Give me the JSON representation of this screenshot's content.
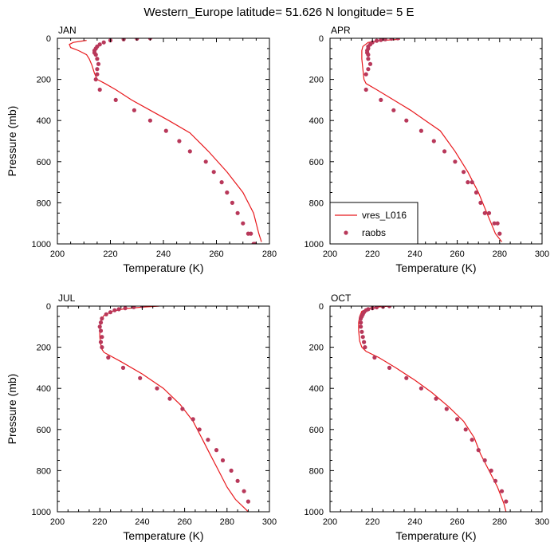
{
  "figure": {
    "title": "Western_Europe  latitude= 51.626 N longitude= 5 E"
  },
  "chart_data": [
    {
      "type": "line",
      "panel": "JAN",
      "xlabel": "Temperature (K)",
      "ylabel": "Pressure (mb)",
      "xlim": [
        200,
        280
      ],
      "ylim": [
        1000,
        0
      ],
      "xticks": [
        200,
        220,
        240,
        260,
        280
      ],
      "yticks": [
        0,
        200,
        400,
        600,
        800,
        1000
      ],
      "series": [
        {
          "name": "vres_L016",
          "kind": "line",
          "color": "#e8191d",
          "x": [
            211,
            206,
            204.5,
            205,
            208,
            211,
            212,
            213,
            214,
            215,
            218,
            222,
            228,
            235,
            242,
            250,
            257,
            264,
            270,
            274,
            276,
            277
          ],
          "y": [
            10,
            20,
            30,
            45,
            60,
            80,
            100,
            130,
            170,
            200,
            220,
            250,
            300,
            350,
            400,
            460,
            550,
            650,
            750,
            850,
            950,
            990
          ]
        },
        {
          "name": "raobs",
          "kind": "markers",
          "color": "#b8385a",
          "x": [
            235,
            230,
            225,
            220,
            217.5,
            216,
            215,
            214.5,
            214,
            214,
            214.5,
            215,
            215.5,
            215,
            215,
            214.5,
            216,
            222,
            229,
            235,
            241,
            246,
            250,
            256,
            259,
            262,
            264,
            266,
            268,
            270,
            272,
            273,
            274,
            274.5
          ],
          "y": [
            0,
            2,
            5,
            10,
            20,
            30,
            40,
            50,
            60,
            70,
            80,
            100,
            125,
            150,
            175,
            200,
            250,
            300,
            350,
            400,
            450,
            500,
            550,
            600,
            650,
            700,
            750,
            800,
            850,
            900,
            950,
            950,
            1000,
            1000
          ]
        }
      ]
    },
    {
      "type": "line",
      "panel": "APR",
      "xlabel": "Temperature (K)",
      "ylabel": "",
      "xlim": [
        200,
        300
      ],
      "ylim": [
        1000,
        0
      ],
      "xticks": [
        200,
        220,
        240,
        260,
        280,
        300
      ],
      "yticks": [
        0,
        200,
        400,
        600,
        800,
        1000
      ],
      "legend": {
        "position": "bottom-left",
        "entries": [
          {
            "label": "vres_L016",
            "kind": "line"
          },
          {
            "label": "raobs",
            "kind": "markers"
          }
        ]
      },
      "series": [
        {
          "name": "vres_L016",
          "kind": "line",
          "color": "#e8191d",
          "x": [
            233,
            225,
            218,
            215.5,
            215,
            215,
            215.5,
            216,
            217,
            222,
            230,
            238,
            245,
            252,
            259,
            265,
            270,
            274,
            278,
            281
          ],
          "y": [
            5,
            10,
            20,
            40,
            60,
            100,
            150,
            200,
            220,
            250,
            300,
            350,
            400,
            450,
            550,
            650,
            750,
            850,
            950,
            990
          ]
        },
        {
          "name": "raobs",
          "kind": "markers",
          "color": "#b8385a",
          "x": [
            232,
            229,
            226,
            224,
            222,
            220,
            219,
            218,
            218,
            217.5,
            217.5,
            218,
            218,
            219,
            218,
            217,
            217,
            224,
            230,
            236,
            243,
            249,
            254,
            259,
            263,
            265,
            267,
            269,
            271,
            273,
            275,
            277.5,
            279,
            280
          ],
          "y": [
            0,
            2,
            5,
            8,
            12,
            20,
            30,
            40,
            50,
            60,
            70,
            80,
            100,
            125,
            150,
            175,
            250,
            300,
            350,
            400,
            450,
            500,
            550,
            600,
            650,
            700,
            700,
            750,
            800,
            850,
            850,
            900,
            900,
            950
          ]
        }
      ]
    },
    {
      "type": "line",
      "panel": "JUL",
      "xlabel": "Temperature (K)",
      "ylabel": "Pressure (mb)",
      "xlim": [
        200,
        300
      ],
      "ylim": [
        1000,
        0
      ],
      "xticks": [
        200,
        220,
        240,
        260,
        280,
        300
      ],
      "yticks": [
        0,
        200,
        400,
        600,
        800,
        1000
      ],
      "series": [
        {
          "name": "vres_L016",
          "kind": "line",
          "color": "#e8191d",
          "x": [
            248,
            240,
            232,
            226,
            222,
            220.5,
            220,
            220,
            220.5,
            221,
            222,
            230,
            240,
            250,
            258,
            264,
            268,
            272,
            276,
            280,
            284,
            288,
            290
          ],
          "y": [
            0,
            5,
            12,
            25,
            45,
            70,
            100,
            150,
            190,
            210,
            225,
            270,
            330,
            400,
            480,
            560,
            640,
            720,
            800,
            880,
            940,
            980,
            1000
          ]
        },
        {
          "name": "raobs",
          "kind": "markers",
          "color": "#b8385a",
          "x": [
            240,
            236,
            232,
            229,
            227,
            225,
            223,
            221,
            220.5,
            220,
            220.5,
            221,
            220.5,
            221,
            224,
            231,
            239,
            247,
            253,
            259,
            264,
            267,
            271,
            275,
            278,
            282,
            285,
            288,
            290
          ],
          "y": [
            0,
            5,
            10,
            15,
            20,
            30,
            40,
            60,
            80,
            100,
            120,
            150,
            175,
            200,
            250,
            300,
            350,
            400,
            450,
            500,
            550,
            600,
            650,
            700,
            750,
            800,
            850,
            900,
            950
          ]
        }
      ]
    },
    {
      "type": "line",
      "panel": "OCT",
      "xlabel": "Temperature (K)",
      "ylabel": "",
      "xlim": [
        200,
        300
      ],
      "ylim": [
        1000,
        0
      ],
      "xticks": [
        200,
        220,
        240,
        260,
        280,
        300
      ],
      "yticks": [
        0,
        200,
        400,
        600,
        800,
        1000
      ],
      "series": [
        {
          "name": "vres_L016",
          "kind": "line",
          "color": "#e8191d",
          "x": [
            228,
            222,
            218,
            215,
            214,
            213.5,
            213.5,
            214,
            215,
            217,
            223,
            231,
            240,
            248,
            256,
            263,
            268,
            271,
            275,
            279,
            282,
            283
          ],
          "y": [
            0,
            5,
            12,
            25,
            50,
            80,
            120,
            170,
            200,
            220,
            250,
            300,
            360,
            420,
            490,
            560,
            640,
            720,
            800,
            880,
            960,
            1000
          ]
        },
        {
          "name": "raobs",
          "kind": "markers",
          "color": "#b8385a",
          "x": [
            228,
            225,
            222,
            220,
            218,
            217,
            216,
            215.5,
            215,
            214.5,
            214.5,
            214.5,
            215,
            215.5,
            216,
            216.5,
            221,
            228,
            236,
            243,
            250,
            255,
            260,
            264,
            267,
            270,
            273,
            276,
            278,
            281,
            283
          ],
          "y": [
            0,
            3,
            6,
            10,
            15,
            20,
            30,
            40,
            50,
            60,
            80,
            100,
            125,
            150,
            175,
            200,
            250,
            300,
            350,
            400,
            450,
            500,
            550,
            600,
            650,
            700,
            750,
            800,
            850,
            900,
            950
          ]
        }
      ]
    }
  ]
}
